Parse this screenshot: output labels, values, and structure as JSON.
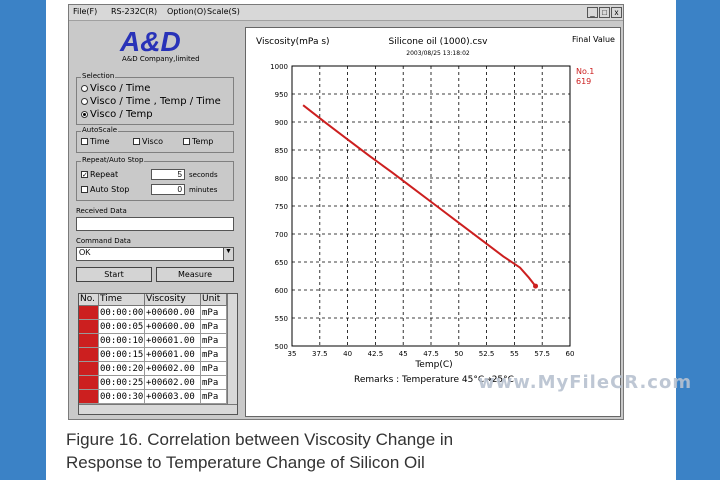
{
  "menu": {
    "file": "File(F)",
    "rs232c": "RS-232C(R)",
    "option": "Option(O)",
    "scale": "Scale(S)"
  },
  "window_controls": {
    "minimize": "_",
    "maximize": "□",
    "close": "x"
  },
  "logo": {
    "text": "A&D",
    "subtext": "A&D Company,limited"
  },
  "selection": {
    "title": "Selection",
    "options": [
      "Visco / Time",
      "Visco / Time , Temp / Time",
      "Visco / Temp"
    ],
    "selected_index": 2
  },
  "autoscale": {
    "title": "AutoScale",
    "items": [
      {
        "label": "Time",
        "checked": false
      },
      {
        "label": "Visco",
        "checked": false
      },
      {
        "label": "Temp",
        "checked": false
      }
    ]
  },
  "repeat": {
    "title": "Repeat/Auto Stop",
    "repeat_label": "Repeat",
    "repeat_checked": true,
    "repeat_value": "5",
    "repeat_unit": "seconds",
    "autostop_label": "Auto Stop",
    "autostop_checked": false,
    "autostop_value": "0",
    "autostop_unit": "minutes"
  },
  "received": {
    "label": "Received Data",
    "value": ""
  },
  "command": {
    "label": "Command Data",
    "value": "OK"
  },
  "buttons": {
    "start": "Start",
    "measure": "Measure"
  },
  "table": {
    "headers": [
      "No.",
      "Time",
      "Viscosity",
      "Unit"
    ],
    "rows": [
      [
        "00:00:00",
        "+00600.00",
        "mPa"
      ],
      [
        "00:00:05",
        "+00600.00",
        "mPa"
      ],
      [
        "00:00:10",
        "+00601.00",
        "mPa"
      ],
      [
        "00:00:15",
        "+00601.00",
        "mPa"
      ],
      [
        "00:00:20",
        "+00602.00",
        "mPa"
      ],
      [
        "00:00:25",
        "+00602.00",
        "mPa"
      ],
      [
        "00:00:30",
        "+00603.00",
        "mPa"
      ]
    ]
  },
  "chart_data": {
    "type": "line",
    "title": "Silicone oil (1000).csv",
    "subtitle": "2003/08/25 13:18:02",
    "ylabel": "Viscosity(mPa s)",
    "xlabel": "Temp(C)",
    "xlim": [
      35,
      60
    ],
    "ylim": [
      500,
      1000
    ],
    "x_ticks": [
      "35",
      "37.5",
      "40",
      "42.5",
      "45",
      "47.5",
      "50",
      "52.5",
      "55",
      "57.5",
      "60"
    ],
    "y_ticks": [
      "1000",
      "950",
      "900",
      "850",
      "800",
      "750",
      "700",
      "650",
      "600",
      "550",
      "500"
    ],
    "series": [
      {
        "color": "#cc1f1f",
        "x": [
          36.0,
          38.0,
          40.0,
          42.0,
          44.0,
          46.0,
          48.0,
          50.0,
          52.0,
          54.0,
          55.5,
          56.3,
          56.9
        ],
        "y": [
          930,
          899,
          869,
          839,
          810,
          780,
          750,
          720,
          690,
          660,
          640,
          622,
          607
        ]
      }
    ],
    "final_value_label": "Final Value",
    "final_no": "No.1",
    "final_value": "619",
    "remarks": "Remarks : Temperature 45°C→25°C"
  },
  "caption": {
    "line1": "Figure 16. Correlation between Viscosity Change in",
    "line2": "Response to Temperature Change of Silicon Oil"
  },
  "watermark": "www.MyFileCR.com"
}
